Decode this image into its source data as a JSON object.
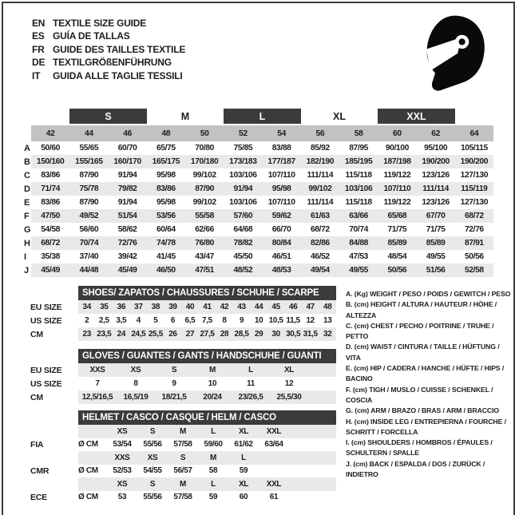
{
  "colors": {
    "dark_bar": "#3b3b3b",
    "size_row_bg": "#c2c2c2",
    "stripe_bg": "#e9e9e9",
    "text": "#1d1d1d"
  },
  "header": {
    "languages": [
      {
        "code": "EN",
        "title": "TEXTILE SIZE GUIDE"
      },
      {
        "code": "ES",
        "title": "GUÍA DE TALLAS"
      },
      {
        "code": "FR",
        "title": "GUIDE DES TAILLES TEXTILE"
      },
      {
        "code": "DE",
        "title": "TEXTILGRÖßENFÜHRUNG"
      },
      {
        "code": "IT",
        "title": "GUIDA ALLE TAGLIE TESSILI"
      }
    ],
    "icon": "full-face-helmet"
  },
  "textile_table": {
    "size_groups": [
      {
        "label": "S",
        "filled": true
      },
      {
        "label": "M",
        "filled": false
      },
      {
        "label": "L",
        "filled": true
      },
      {
        "label": "XL",
        "filled": false
      },
      {
        "label": "XXL",
        "filled": true
      }
    ],
    "sizes": [
      "42",
      "44",
      "46",
      "48",
      "50",
      "52",
      "54",
      "56",
      "58",
      "60",
      "62",
      "64"
    ],
    "rows": [
      {
        "label": "A",
        "values": [
          "50/60",
          "55/65",
          "60/70",
          "65/75",
          "70/80",
          "75/85",
          "83/88",
          "85/92",
          "87/95",
          "90/100",
          "95/100",
          "105/115"
        ]
      },
      {
        "label": "B",
        "values": [
          "150/160",
          "155/165",
          "160/170",
          "165/175",
          "170/180",
          "173/183",
          "177/187",
          "182/190",
          "185/195",
          "187/198",
          "190/200",
          "190/200"
        ]
      },
      {
        "label": "C",
        "values": [
          "83/86",
          "87/90",
          "91/94",
          "95/98",
          "99/102",
          "103/106",
          "107/110",
          "111/114",
          "115/118",
          "119/122",
          "123/126",
          "127/130"
        ]
      },
      {
        "label": "D",
        "values": [
          "71/74",
          "75/78",
          "79/82",
          "83/86",
          "87/90",
          "91/94",
          "95/98",
          "99/102",
          "103/106",
          "107/110",
          "111/114",
          "115/119"
        ]
      },
      {
        "label": "E",
        "values": [
          "83/86",
          "87/90",
          "91/94",
          "95/98",
          "99/102",
          "103/106",
          "107/110",
          "111/114",
          "115/118",
          "119/122",
          "123/126",
          "127/130"
        ]
      },
      {
        "label": "F",
        "values": [
          "47/50",
          "49/52",
          "51/54",
          "53/56",
          "55/58",
          "57/60",
          "59/62",
          "61/63",
          "63/66",
          "65/68",
          "67/70",
          "68/72"
        ]
      },
      {
        "label": "G",
        "values": [
          "54/58",
          "56/60",
          "58/62",
          "60/64",
          "62/66",
          "64/68",
          "66/70",
          "68/72",
          "70/74",
          "71/75",
          "71/75",
          "72/76"
        ]
      },
      {
        "label": "H",
        "values": [
          "68/72",
          "70/74",
          "72/76",
          "74/78",
          "76/80",
          "78/82",
          "80/84",
          "82/86",
          "84/88",
          "85/89",
          "85/89",
          "87/91"
        ]
      },
      {
        "label": "I",
        "values": [
          "35/38",
          "37/40",
          "39/42",
          "41/45",
          "43/47",
          "45/50",
          "46/51",
          "46/52",
          "47/53",
          "48/54",
          "49/55",
          "50/56"
        ]
      },
      {
        "label": "J",
        "values": [
          "45/49",
          "44/48",
          "45/49",
          "46/50",
          "47/51",
          "48/52",
          "48/53",
          "49/54",
          "49/55",
          "50/56",
          "51/56",
          "52/58"
        ]
      }
    ]
  },
  "shoes": {
    "title": "SHOES/ ZAPATOS / CHAUSSURES / SCHUHE / SCARPE",
    "rows": [
      {
        "label": "EU SIZE",
        "values": [
          "34",
          "35",
          "36",
          "37",
          "38",
          "39",
          "40",
          "41",
          "42",
          "43",
          "44",
          "45",
          "46",
          "47",
          "48"
        ]
      },
      {
        "label": "US SIZE",
        "values": [
          "2",
          "2,5",
          "3,5",
          "4",
          "5",
          "6",
          "6,5",
          "7,5",
          "8",
          "9",
          "10",
          "10,5",
          "11,5",
          "12",
          "13"
        ]
      },
      {
        "label": "CM",
        "values": [
          "23",
          "23,5",
          "24",
          "24,5",
          "25,5",
          "26",
          "27",
          "27,5",
          "28",
          "28,5",
          "29",
          "30",
          "30,5",
          "31,5",
          "32"
        ]
      }
    ]
  },
  "gloves": {
    "title": "GLOVES / GUANTES / GANTS / HANDSCHUHE / GUANTI",
    "rows": [
      {
        "label": "EU SIZE",
        "values": [
          "XXS",
          "XS",
          "S",
          "M",
          "L",
          "XL"
        ]
      },
      {
        "label": "US SIZE",
        "values": [
          "7",
          "8",
          "9",
          "10",
          "11",
          "12"
        ]
      },
      {
        "label": "CM",
        "values": [
          "12,5/16,5",
          "16,5/19",
          "18/21,5",
          "20/24",
          "23/26,5",
          "25,5/30"
        ]
      }
    ]
  },
  "helmet": {
    "title": "HELMET / CASCO / CASQUE / HELM / CASCO",
    "unit_label": "Ø CM",
    "sections": [
      {
        "label": "FIA",
        "sizes": [
          "XS",
          "S",
          "M",
          "L",
          "XL",
          "XXL"
        ],
        "values": [
          "53/54",
          "55/56",
          "57/58",
          "59/60",
          "61/62",
          "63/64"
        ]
      },
      {
        "label": "CMR",
        "sizes": [
          "XXS",
          "XS",
          "S",
          "M",
          "L"
        ],
        "values": [
          "52/53",
          "54/55",
          "56/57",
          "58",
          "59"
        ]
      },
      {
        "label": "ECE",
        "sizes": [
          "XS",
          "S",
          "M",
          "L",
          "XL",
          "XXL"
        ],
        "values": [
          "53",
          "55/56",
          "57/58",
          "59",
          "60",
          "61"
        ]
      }
    ]
  },
  "legend": [
    "A. (Kg) WEIGHT / PESO / POIDS / GEWITCH / PESO",
    "B. (cm) HEIGHT / ALTURA / HAUTEUR / HÖHE / ALTEZZA",
    "C. (cm) CHEST / PECHO / POITRINE / TRUHE / PETTO",
    "D. (cm) WAIST / CINTURA / TAILLE / HÜFTUNG / VITA",
    "E. (cm) HIP / CADERA / HANCHE / HÜFTE / HIPS / BACINO",
    "F. (cm) TIGH / MUSLO / CUISSE / SCHENKEL / COSCIA",
    "G. (cm) ARM / BRAZO / BRAS / ARM / BRACCIO",
    "H. (cm) INSIDE LEG / ENTREPIERNA / FOURCHE / SCHRITT / FORCELLA",
    "I. (cm) SHOULDERS / HOMBROS / ÉPAULES / SCHULTERN / SPALLE",
    "J. (cm) BACK / ESPALDA / DOS / ZURÜCK / INDIETRO"
  ]
}
